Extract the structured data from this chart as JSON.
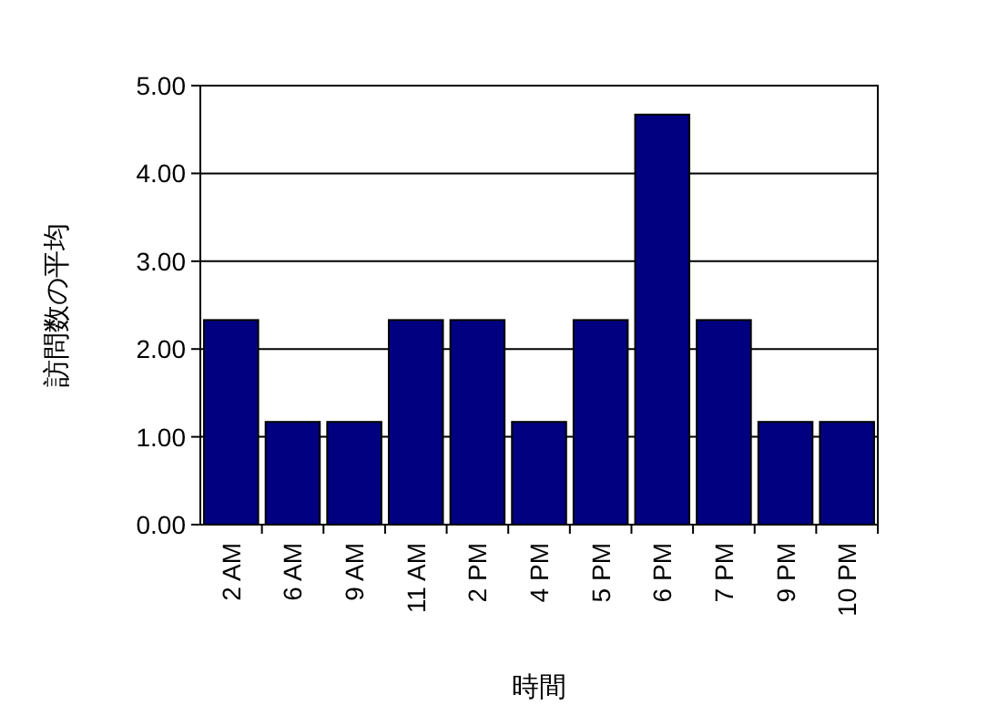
{
  "chart_data": {
    "type": "bar",
    "xlabel": "時間",
    "ylabel": "訪問数の平均",
    "categories": [
      "2 AM",
      "6 AM",
      "9 AM",
      "11 AM",
      "2 PM",
      "4 PM",
      "5 PM",
      "6 PM",
      "7 PM",
      "9 PM",
      "10 PM"
    ],
    "values": [
      2.33,
      1.17,
      1.17,
      2.33,
      2.33,
      1.17,
      2.33,
      4.67,
      2.33,
      1.17,
      1.17
    ],
    "color": "#000080",
    "ylim": [
      0,
      5
    ],
    "yticks": [
      {
        "value": 0,
        "label": "0.00"
      },
      {
        "value": 1,
        "label": "1.00"
      },
      {
        "value": 2,
        "label": "2.00"
      },
      {
        "value": 3,
        "label": "3.00"
      },
      {
        "value": 4,
        "label": "4.00"
      },
      {
        "value": 5,
        "label": "5.00"
      }
    ],
    "grid": "y"
  }
}
